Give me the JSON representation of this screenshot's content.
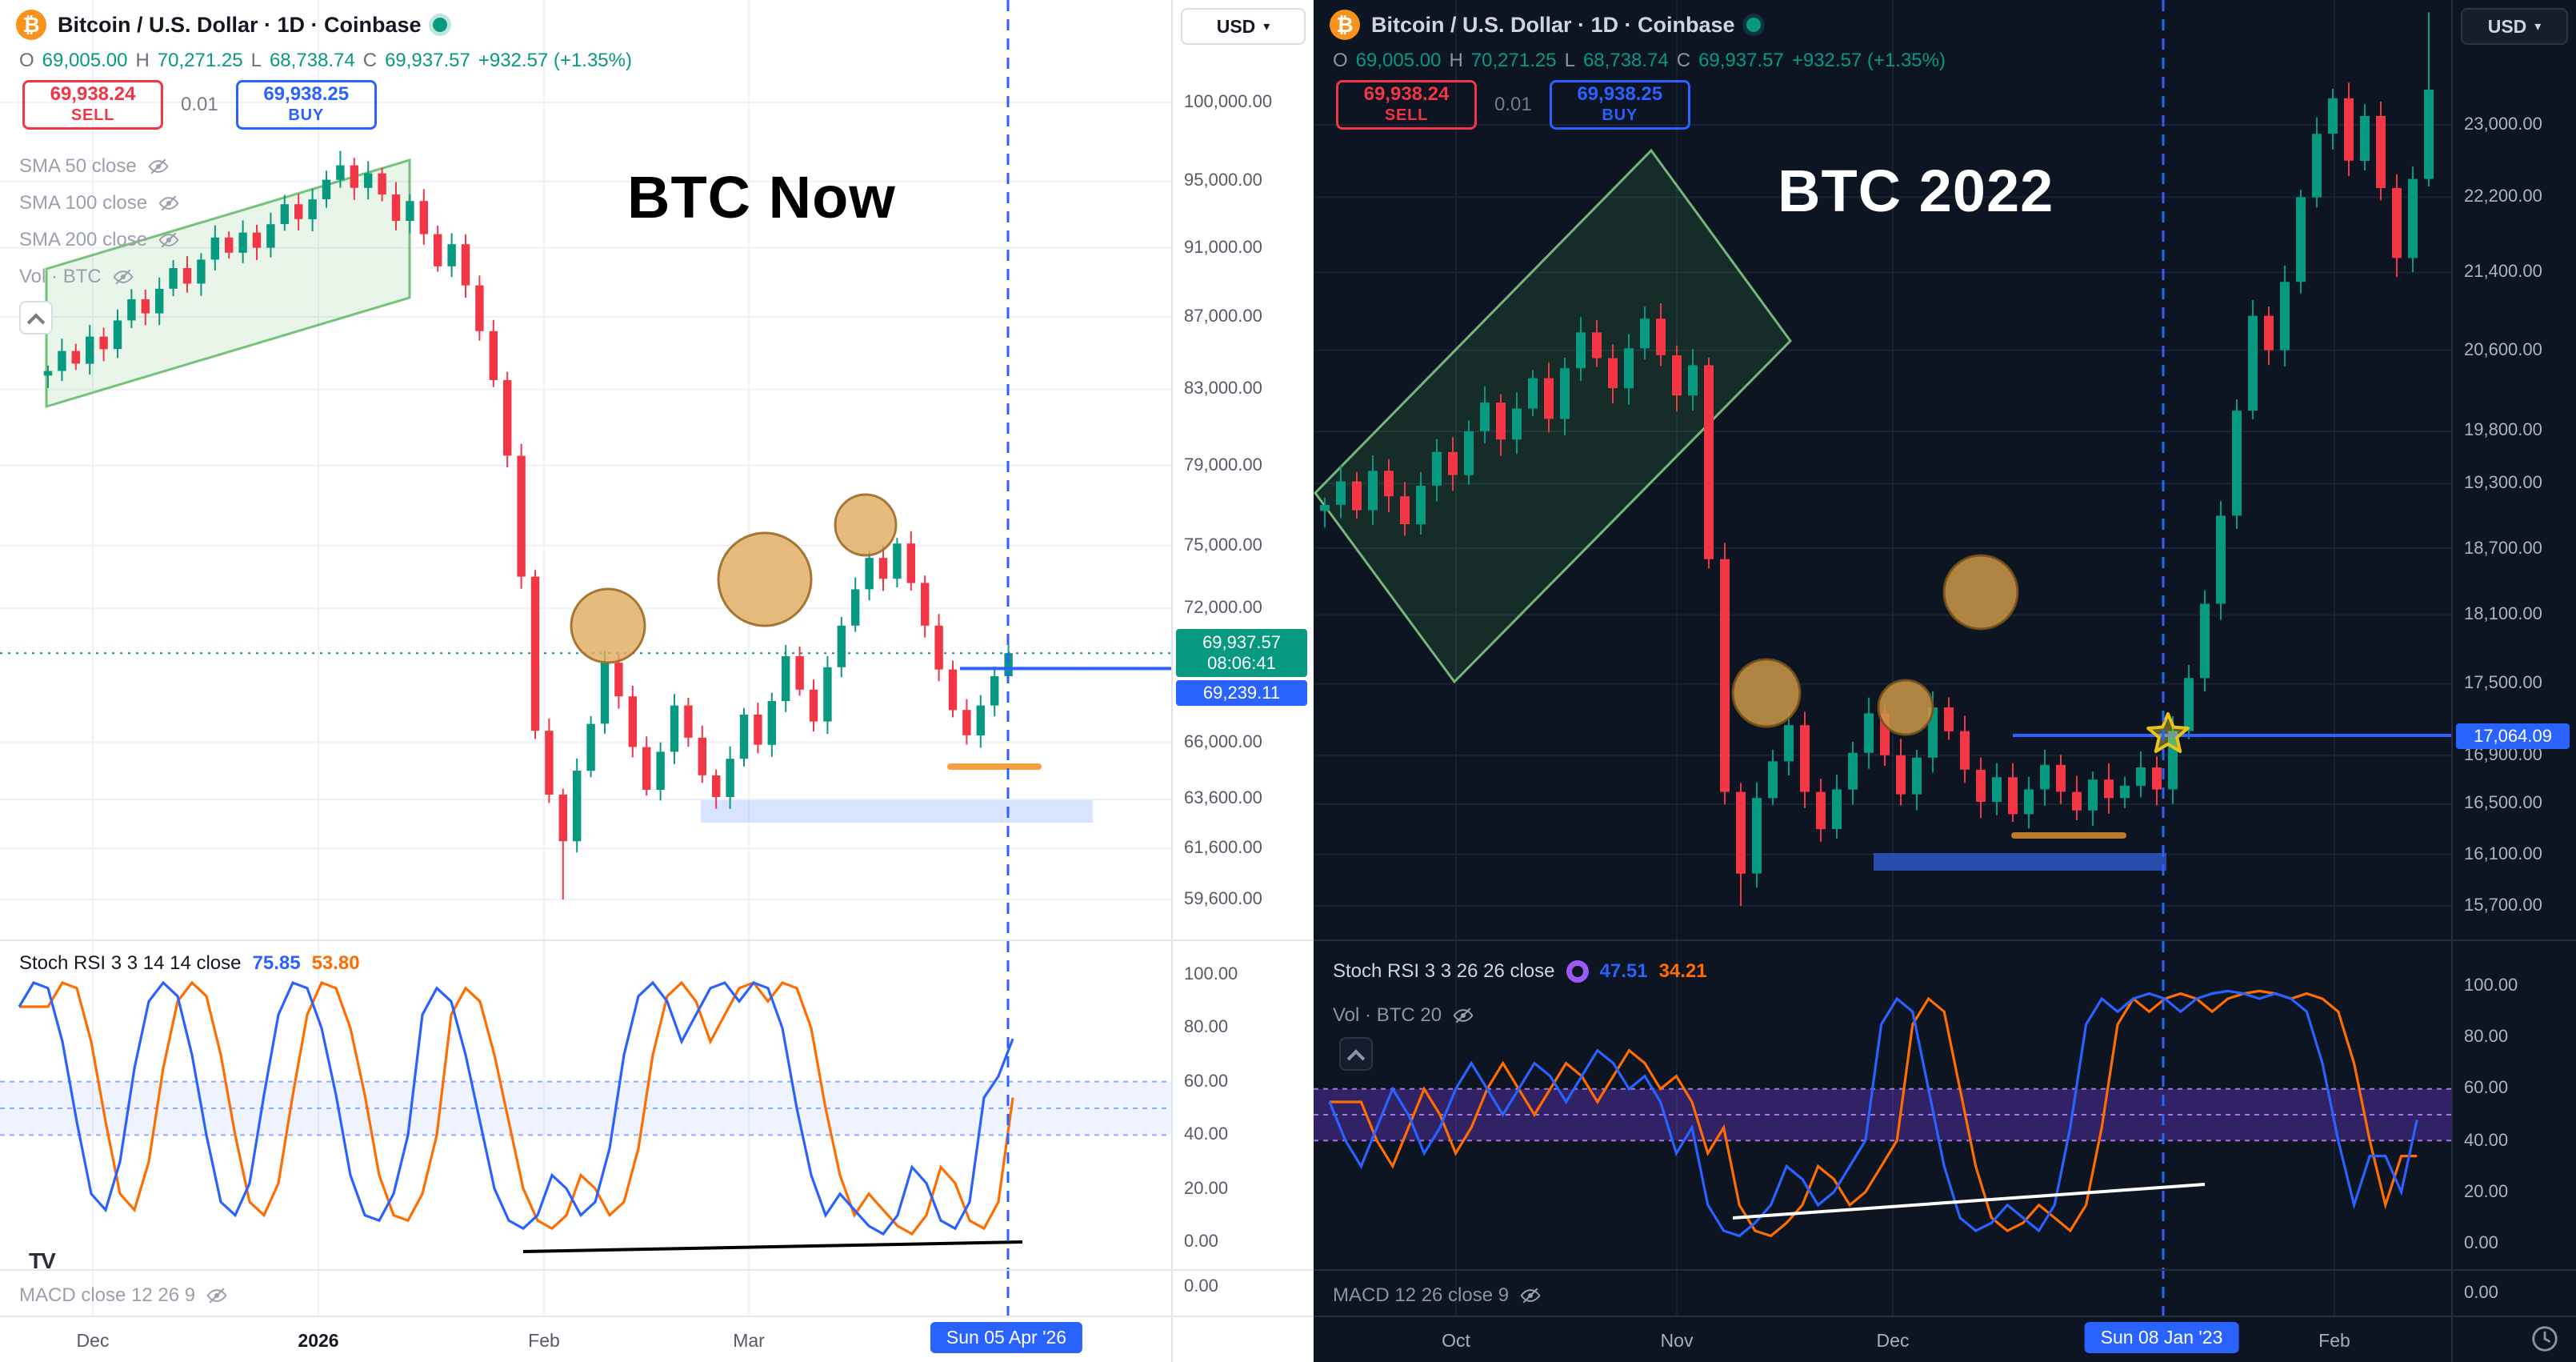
{
  "colors": {
    "up": "#089981",
    "down": "#f23645",
    "accent": "#2962FF",
    "orange": "#FF6D00",
    "sell_red": "#f23645",
    "buy_blue": "#2962ff",
    "bitcoin_orange": "#f7931a",
    "badge_teal": "#089981"
  },
  "icons": {
    "bitcoin": "₿",
    "caret_down": "▾",
    "tv": "TV"
  },
  "panels": {
    "left": {
      "title": "Bitcoin / U.S. Dollar · 1D · Coinbase",
      "ohlc": {
        "o_label": "O",
        "o": "69,005.00",
        "h_label": "H",
        "h": "70,271.25",
        "l_label": "L",
        "l": "68,738.74",
        "c_label": "C",
        "c": "69,937.57",
        "change": "+932.57 (+1.35%)"
      },
      "sell_price": "69,938.24",
      "sell_label": "SELL",
      "qty": "0.01",
      "buy_price": "69,938.25",
      "buy_label": "BUY",
      "indicators": [
        "SMA 50 close",
        "SMA 100 close",
        "SMA 200 close",
        "Vol · BTC"
      ],
      "annotation": "BTC Now",
      "stoch_label": "Stoch RSI 3 3 14 14 close",
      "stoch_k": "75.85",
      "stoch_d": "53.80",
      "macd_label": "MACD close 12 26 9",
      "axis_currency": "USD",
      "price_badge": "69,937.57",
      "countdown": "08:06:41",
      "bid_badge": "69,239.11",
      "time_badge": "Sun 05 Apr '26"
    },
    "right": {
      "title": "Bitcoin / U.S. Dollar · 1D · Coinbase",
      "ohlc": {
        "o_label": "O",
        "o": "69,005.00",
        "h_label": "H",
        "h": "70,271.25",
        "l_label": "L",
        "l": "68,738.74",
        "c_label": "C",
        "c": "69,937.57",
        "change": "+932.57 (+1.35%)"
      },
      "sell_price": "69,938.24",
      "sell_label": "SELL",
      "qty": "0.01",
      "buy_price": "69,938.25",
      "buy_label": "BUY",
      "annotation": "BTC 2022",
      "stoch_label": "Stoch RSI 3 3 26 26 close",
      "stoch_k": "47.51",
      "stoch_d": "34.21",
      "vol_label": "Vol · BTC 20",
      "macd_label": "MACD 12 26 close 9",
      "axis_currency": "USD",
      "line_badge": "17,064.09",
      "time_badge": "Sun 08 Jan '23"
    }
  },
  "chart_data": [
    {
      "id": "btc-now",
      "type": "candlestick",
      "title": "BTC Now",
      "timeframe": "1D",
      "units": "USD thousands",
      "price_labels": [
        {
          "t": "100,000.00",
          "v": 100000
        },
        {
          "t": "95,000.00",
          "v": 95000
        },
        {
          "t": "91,000.00",
          "v": 91000
        },
        {
          "t": "87,000.00",
          "v": 87000
        },
        {
          "t": "83,000.00",
          "v": 83000
        },
        {
          "t": "79,000.00",
          "v": 79000
        },
        {
          "t": "75,000.00",
          "v": 75000
        },
        {
          "t": "72,000.00",
          "v": 72000
        },
        {
          "t": "66,000.00",
          "v": 66000
        },
        {
          "t": "63,600.00",
          "v": 63600
        },
        {
          "t": "61,600.00",
          "v": 61600
        },
        {
          "t": "59,600.00",
          "v": 59600
        }
      ],
      "indicator_labels": [
        {
          "t": "100.00",
          "v": 100
        },
        {
          "t": "80.00",
          "v": 80
        },
        {
          "t": "60.00",
          "v": 60
        },
        {
          "t": "40.00",
          "v": 40
        },
        {
          "t": "20.00",
          "v": 20
        },
        {
          "t": "0.00",
          "v": 0
        }
      ],
      "macd_zero": "0.00",
      "x_ticks": [
        {
          "t": "Dec",
          "x": 58
        },
        {
          "t": "2026",
          "x": 199,
          "bold": true
        },
        {
          "t": "Feb",
          "x": 340
        },
        {
          "t": "Mar",
          "x": 468
        }
      ],
      "time_badge_x": 629,
      "closes_k": [
        84.0,
        85.1,
        84.4,
        85.9,
        85.2,
        86.8,
        88.0,
        87.2,
        88.6,
        89.8,
        88.9,
        90.3,
        91.6,
        90.7,
        91.9,
        91.0,
        92.4,
        93.6,
        92.7,
        93.9,
        95.1,
        96.0,
        94.6,
        95.5,
        94.2,
        92.6,
        93.8,
        91.8,
        89.9,
        91.2,
        88.8,
        86.2,
        83.5,
        79.5,
        73.5,
        66.5,
        63.8,
        61.9,
        64.8,
        66.8,
        69.5,
        68.0,
        65.8,
        64.0,
        65.6,
        67.6,
        66.2,
        64.6,
        63.7,
        65.3,
        67.2,
        65.9,
        67.8,
        69.8,
        68.3,
        66.9,
        69.3,
        71.2,
        72.9,
        74.4,
        73.4,
        75.1,
        73.2,
        71.2,
        69.2,
        67.4,
        66.3,
        67.6,
        68.9,
        69.94
      ],
      "low_overrides": {
        "37": 59.6
      },
      "high_overrides": {
        "21": 96.9,
        "69": 70.3
      },
      "current_price_value": 69937.57,
      "line_price_value": 69239.11,
      "stoch_k": [
        88,
        97,
        95,
        75,
        45,
        18,
        12,
        30,
        65,
        90,
        97,
        92,
        70,
        40,
        15,
        10,
        22,
        55,
        85,
        97,
        95,
        80,
        55,
        25,
        10,
        8,
        18,
        40,
        85,
        95,
        90,
        70,
        45,
        20,
        8,
        5,
        10,
        25,
        20,
        10,
        15,
        35,
        70,
        92,
        97,
        90,
        75,
        85,
        95,
        97,
        90,
        97,
        95,
        80,
        50,
        25,
        10,
        18,
        12,
        6,
        3,
        10,
        28,
        22,
        8,
        5,
        15,
        54,
        62,
        76
      ],
      "stoch_d_lag": 2,
      "stoch_last": {
        "k": 75.85,
        "d": 53.8
      },
      "stoch_band": {
        "hi": 60,
        "lo": 40,
        "lines": [
          60,
          50,
          40
        ],
        "fill": "rgba(41,98,255,0.08)",
        "line_color": "rgba(41,98,255,0.5)"
      },
      "annotations": {
        "channel": [
          [
            29,
            168
          ],
          [
            256,
            100
          ],
          [
            256,
            186
          ],
          [
            29,
            254
          ]
        ],
        "channel_fill": "rgba(76,175,80,0.13)",
        "channel_stroke": "rgba(76,175,80,0.75)",
        "band_rect": [
          438,
          500,
          245,
          14
        ],
        "band_color": "rgba(41,98,255,0.18)",
        "orange_segment": [
          594,
          479,
          649,
          479
        ],
        "orange_color": "#f59e42",
        "ellipses": [
          [
            380,
            391,
            23
          ],
          [
            478,
            362,
            29
          ],
          [
            541,
            328,
            19
          ]
        ],
        "ellipse_fill": "rgba(224,170,94,0.8)",
        "ellipse_stroke": "rgba(158,106,37,0.9)",
        "trendline": [
          327,
          782,
          639,
          776
        ],
        "trendline_color": "#000000",
        "vline_x": 630
      }
    },
    {
      "id": "btc-2022",
      "type": "candlestick",
      "title": "BTC 2022",
      "timeframe": "1D",
      "units": "USD thousands",
      "price_labels": [
        {
          "t": "23,000.00",
          "v": 23000
        },
        {
          "t": "22,200.00",
          "v": 22200
        },
        {
          "t": "21,400.00",
          "v": 21400
        },
        {
          "t": "20,600.00",
          "v": 20600
        },
        {
          "t": "19,800.00",
          "v": 19800
        },
        {
          "t": "19,300.00",
          "v": 19300
        },
        {
          "t": "18,700.00",
          "v": 18700
        },
        {
          "t": "18,100.00",
          "v": 18100
        },
        {
          "t": "17,500.00",
          "v": 17500
        },
        {
          "t": "16,900.00",
          "v": 16900
        },
        {
          "t": "16,500.00",
          "v": 16500
        },
        {
          "t": "16,100.00",
          "v": 16100
        },
        {
          "t": "15,700.00",
          "v": 15700
        }
      ],
      "indicator_labels": [
        {
          "t": "100.00",
          "v": 100
        },
        {
          "t": "80.00",
          "v": 80
        },
        {
          "t": "60.00",
          "v": 60
        },
        {
          "t": "40.00",
          "v": 40
        },
        {
          "t": "20.00",
          "v": 20
        },
        {
          "t": "0.00",
          "v": 0
        }
      ],
      "macd_zero": "0.00",
      "x_ticks": [
        {
          "t": "Oct",
          "x": 89
        },
        {
          "t": "Nov",
          "x": 227
        },
        {
          "t": "Dec",
          "x": 362
        },
        {
          "t": "Feb",
          "x": 638
        }
      ],
      "time_badge_x": 530,
      "closes_k": [
        19.1,
        19.32,
        19.05,
        19.42,
        19.18,
        18.92,
        19.28,
        19.6,
        19.38,
        19.8,
        20.08,
        19.72,
        20.02,
        20.32,
        19.92,
        20.42,
        20.78,
        20.52,
        20.22,
        20.62,
        20.92,
        20.55,
        20.15,
        20.45,
        18.6,
        16.6,
        15.95,
        16.55,
        16.85,
        17.15,
        16.6,
        16.3,
        16.62,
        16.92,
        17.25,
        16.9,
        16.58,
        16.88,
        17.3,
        17.1,
        16.78,
        16.52,
        16.72,
        16.42,
        16.62,
        16.82,
        16.6,
        16.45,
        16.7,
        16.55,
        16.65,
        16.8,
        16.62,
        17.1,
        17.55,
        18.2,
        19.0,
        20.0,
        20.95,
        20.6,
        21.3,
        22.2,
        22.9,
        23.3,
        22.6,
        23.1,
        22.3,
        21.55,
        22.4,
        23.4
      ],
      "low_overrides": {
        "26": 15.7,
        "67": 21.35
      },
      "high_overrides": {
        "69": 24.3
      },
      "line_price_value": 17064.09,
      "stoch_k": [
        55,
        40,
        30,
        45,
        60,
        50,
        35,
        45,
        60,
        70,
        60,
        50,
        60,
        70,
        65,
        55,
        65,
        75,
        70,
        60,
        65,
        55,
        35,
        45,
        15,
        5,
        3,
        8,
        15,
        30,
        25,
        15,
        20,
        30,
        40,
        85,
        95,
        90,
        60,
        30,
        10,
        5,
        8,
        15,
        10,
        5,
        15,
        45,
        85,
        95,
        90,
        95,
        97,
        95,
        90,
        95,
        97,
        98,
        97,
        95,
        97,
        95,
        90,
        70,
        40,
        15,
        34,
        34,
        20,
        48
      ],
      "stoch_d_lag": 2,
      "stoch_last": {
        "k": 47.51,
        "d": 34.21
      },
      "stoch_band": {
        "hi": 60,
        "lo": 40,
        "lines": [
          60,
          50,
          40
        ],
        "fill": "rgba(126,63,242,0.32)",
        "line_color": "rgba(187,134,252,0.85)"
      },
      "annotations": {
        "channel": [
          [
            1,
            308
          ],
          [
            211,
            94
          ],
          [
            298,
            213
          ],
          [
            88,
            426
          ]
        ],
        "channel_fill": "rgba(76,175,80,0.16)",
        "channel_stroke": "rgba(129,199,132,0.9)",
        "band_rect": [
          350,
          533,
          183,
          11
        ],
        "band_color": "rgba(47,85,196,0.85)",
        "orange_segment": [
          438,
          522,
          506,
          522
        ],
        "orange_color": "#b97a2a",
        "ellipses": [
          [
            283,
            433,
            21
          ],
          [
            370,
            442,
            17
          ],
          [
            417,
            370,
            23
          ]
        ],
        "ellipse_fill": "rgba(205,150,70,0.85)",
        "ellipse_stroke": "rgba(120,80,25,0.9)",
        "star": [
          534,
          459,
          13
        ],
        "trendline": [
          262,
          761,
          557,
          740
        ],
        "trendline_color": "#ffffff",
        "vline_x": 531
      }
    }
  ]
}
